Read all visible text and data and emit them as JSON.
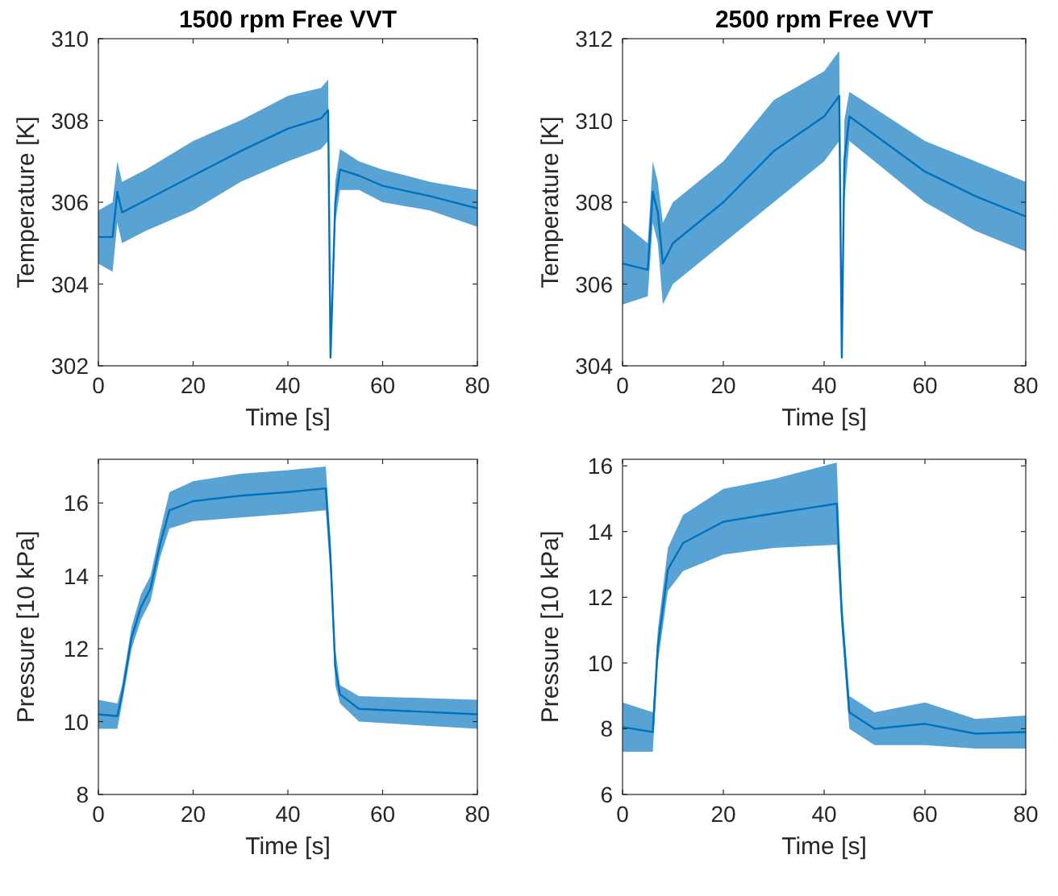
{
  "chart_data": [
    {
      "type": "line",
      "title": "1500 rpm Free VVT",
      "xlabel": "Time [s]",
      "ylabel": "Temperature [K]",
      "xlim": [
        0,
        80
      ],
      "ylim": [
        302,
        310
      ],
      "xticks": [
        0,
        20,
        40,
        60,
        80
      ],
      "yticks": [
        302,
        304,
        306,
        308,
        310
      ],
      "x": [
        0,
        3,
        4,
        5,
        10,
        20,
        30,
        40,
        47,
        48.5,
        49,
        50,
        51,
        55,
        60,
        70,
        80
      ],
      "series": [
        {
          "color": "#0072bd",
          "values": [
            305.15,
            305.15,
            306.25,
            305.75,
            306.05,
            306.65,
            307.25,
            307.8,
            308.05,
            308.25,
            302.2,
            306,
            306.8,
            306.65,
            306.4,
            306.15,
            305.85
          ],
          "lower": [
            304.5,
            304.3,
            305.5,
            305,
            305.3,
            305.8,
            306.5,
            307,
            307.3,
            307.5,
            302.2,
            305.5,
            306.3,
            306.3,
            306,
            305.8,
            305.4
          ],
          "upper": [
            305.8,
            306,
            307,
            306.5,
            306.8,
            307.5,
            308,
            308.6,
            308.8,
            309,
            302.2,
            306.5,
            307.3,
            307,
            306.8,
            306.5,
            306.3
          ]
        }
      ]
    },
    {
      "type": "line",
      "title": "2500 rpm Free VVT",
      "xlabel": "Time [s]",
      "ylabel": "Temperature [K]",
      "xlim": [
        0,
        80
      ],
      "ylim": [
        304,
        312
      ],
      "xticks": [
        0,
        20,
        40,
        60,
        80
      ],
      "yticks": [
        304,
        306,
        308,
        310,
        312
      ],
      "x": [
        0,
        5,
        6,
        7,
        8,
        10,
        20,
        30,
        40,
        43,
        43.5,
        44,
        45,
        50,
        60,
        70,
        80
      ],
      "series": [
        {
          "color": "#0072bd",
          "values": [
            306.5,
            306.35,
            308.25,
            307.75,
            306.5,
            307,
            308,
            309.25,
            310.1,
            310.6,
            304.2,
            309,
            310.1,
            309.65,
            308.75,
            308.15,
            307.65
          ],
          "lower": [
            305.5,
            305.7,
            307.5,
            307,
            305.5,
            306,
            307,
            308,
            309,
            309.5,
            304.2,
            308,
            309.5,
            309,
            308,
            307.3,
            306.8
          ],
          "upper": [
            307.5,
            307,
            309,
            308.5,
            307.5,
            308,
            309,
            310.5,
            311.2,
            311.7,
            304.2,
            310,
            310.7,
            310.3,
            309.5,
            309,
            308.5
          ]
        }
      ]
    },
    {
      "type": "line",
      "xlabel": "Time [s]",
      "ylabel": "Pressure [10 kPa]",
      "xlim": [
        0,
        80
      ],
      "ylim": [
        8,
        17.2
      ],
      "xticks": [
        0,
        20,
        40,
        60,
        80
      ],
      "yticks": [
        8,
        10,
        12,
        14,
        16
      ],
      "x": [
        0,
        4,
        5,
        7,
        9,
        11,
        13,
        15,
        20,
        30,
        40,
        48,
        49,
        50,
        51,
        55,
        80
      ],
      "series": [
        {
          "color": "#0072bd",
          "values": [
            10.2,
            10.15,
            10.75,
            12.3,
            13.15,
            13.65,
            14.85,
            15.8,
            16.05,
            16.2,
            16.3,
            16.4,
            14.5,
            11.5,
            10.75,
            10.35,
            10.2
          ],
          "lower": [
            9.8,
            9.8,
            10.5,
            12,
            12.8,
            13.3,
            14.5,
            15.3,
            15.5,
            15.6,
            15.7,
            15.8,
            14,
            11,
            10.5,
            10,
            9.8
          ],
          "upper": [
            10.6,
            10.5,
            11,
            12.6,
            13.5,
            14,
            15.2,
            16.3,
            16.6,
            16.8,
            16.9,
            17,
            15,
            12,
            11,
            10.7,
            10.6
          ]
        }
      ]
    },
    {
      "type": "line",
      "xlabel": "Time [s]",
      "ylabel": "Pressure [10 kPa]",
      "xlim": [
        0,
        80
      ],
      "ylim": [
        6,
        16.2
      ],
      "xticks": [
        0,
        20,
        40,
        60,
        80
      ],
      "yticks": [
        6,
        8,
        10,
        12,
        14,
        16
      ],
      "x": [
        0,
        6,
        7,
        9,
        12,
        20,
        30,
        42.5,
        43.5,
        45,
        50,
        60,
        70,
        80
      ],
      "series": [
        {
          "color": "#0072bd",
          "values": [
            8.05,
            7.9,
            10.5,
            12.85,
            13.65,
            14.3,
            14.55,
            14.85,
            11.5,
            8.5,
            8,
            8.15,
            7.85,
            7.9
          ],
          "lower": [
            7.3,
            7.3,
            10,
            12.2,
            12.8,
            13.3,
            13.5,
            13.6,
            11,
            8,
            7.5,
            7.5,
            7.4,
            7.4
          ],
          "upper": [
            8.8,
            8.5,
            11,
            13.5,
            14.5,
            15.3,
            15.6,
            16.1,
            12,
            9,
            8.5,
            8.8,
            8.3,
            8.4
          ]
        }
      ]
    }
  ]
}
